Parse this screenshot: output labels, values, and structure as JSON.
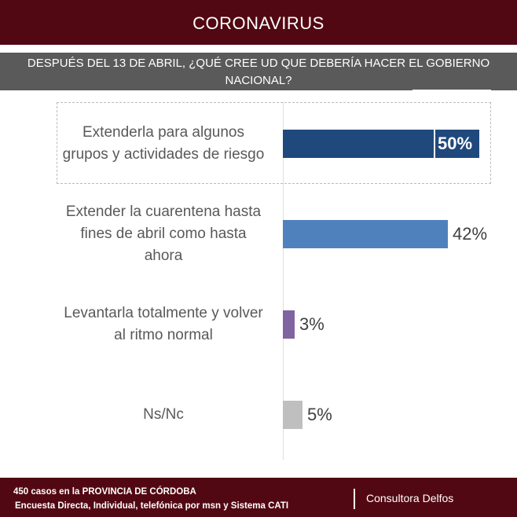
{
  "header": {
    "title": "CORONAVIRUS"
  },
  "question": "DESPUÉS DEL 13 DE ABRIL, ¿QUÉ CREE UD QUE DEBERÍA HACER EL GOBIERNO NACIONAL?",
  "chart_data": {
    "type": "bar",
    "orientation": "horizontal",
    "categories": [
      "Extenderla para algunos grupos y actividades de riesgo",
      "Extender la cuarentena hasta fines de abril como hasta ahora",
      "Levantarla totalmente y volver al ritmo normal",
      "Ns/Nc"
    ],
    "values": [
      50,
      42,
      3,
      5
    ],
    "labels": [
      "50%",
      "42%",
      "3%",
      "5%"
    ],
    "colors": [
      "#1f497d",
      "#4f81bd",
      "#8064a2",
      "#bfbfbf"
    ],
    "grid": false
  },
  "footer": {
    "line1": "450  casos en la PROVINCIA DE CÓRDOBA",
    "line2": "Encuesta Directa, Individual, telefónica por msn y Sistema CATI",
    "brand": "Consultora Delfos"
  }
}
